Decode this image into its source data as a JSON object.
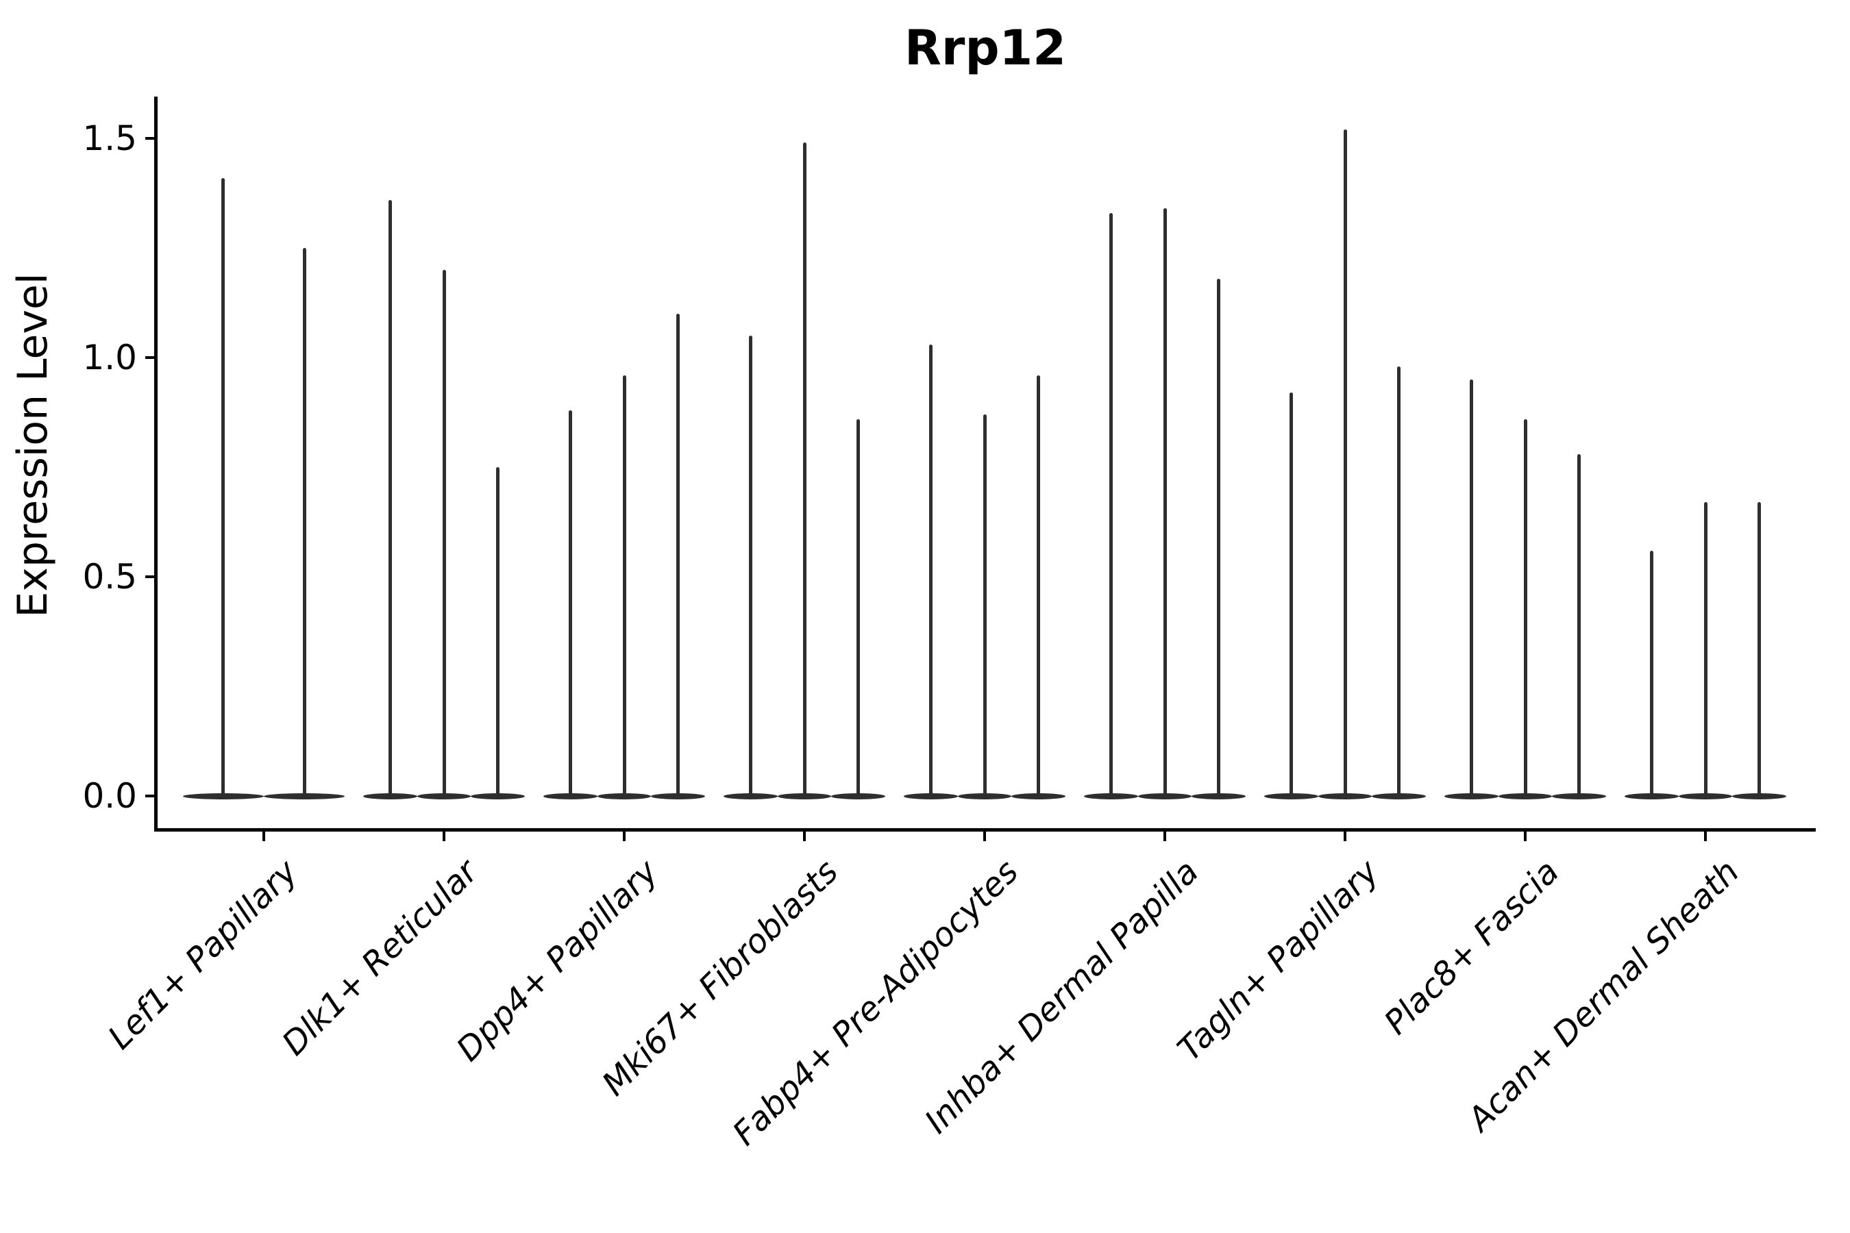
{
  "title": "Rrp12",
  "ylabel": "Expression Level",
  "colors": {
    "violin": "#2e2e2e",
    "axis": "#000000",
    "text": "#000000",
    "background": "#ffffff"
  },
  "chart_data": {
    "type": "violin",
    "title": "Rrp12",
    "xlabel": "",
    "ylabel": "Expression Level",
    "grid": false,
    "legend": "none",
    "ylim": [
      -0.08,
      1.6
    ],
    "y_tick_values": [
      0.0,
      0.5,
      1.0,
      1.5
    ],
    "y_tick_labels": [
      "0.0",
      "0.5",
      "1.0",
      "1.5"
    ],
    "x_tick_rotation_deg": 45,
    "x_tick_style": "italic",
    "categories": [
      "Lef1+ Papillary",
      "Dlk1+ Reticular",
      "Dpp4+ Papillary",
      "Mki67+ Fibroblasts",
      "Fabp4+ Pre-Adipocytes",
      "Inhba+ Dermal Papilla",
      "Tagln+ Papillary",
      "Plac8+ Fascia",
      "Acan+ Dermal Sheath"
    ],
    "groups": [
      {
        "category": "Lef1+ Papillary",
        "violin_max_values": [
          1.41,
          1.25
        ]
      },
      {
        "category": "Dlk1+ Reticular",
        "violin_max_values": [
          1.36,
          1.2,
          0.75
        ]
      },
      {
        "category": "Dpp4+ Papillary",
        "violin_max_values": [
          0.88,
          0.96,
          1.1
        ]
      },
      {
        "category": "Mki67+ Fibroblasts",
        "violin_max_values": [
          1.05,
          1.49,
          0.86
        ]
      },
      {
        "category": "Fabp4+ Pre-Adipocytes",
        "violin_max_values": [
          1.03,
          0.87,
          0.96
        ]
      },
      {
        "category": "Inhba+ Dermal Papilla",
        "violin_max_values": [
          1.33,
          1.34,
          1.18
        ]
      },
      {
        "category": "Tagln+ Papillary",
        "violin_max_values": [
          0.92,
          1.52,
          0.98
        ]
      },
      {
        "category": "Plac8+ Fascia",
        "violin_max_values": [
          0.95,
          0.86,
          0.78
        ]
      },
      {
        "category": "Acan+ Dermal Sheath",
        "violin_max_values": [
          0.56,
          0.67,
          0.67
        ]
      }
    ],
    "description": "Violin plot of sparse single-cell gene expression: each violin collapses to a flat lens at 0 with a thin vertical density spike rising to its maximum expression value."
  }
}
